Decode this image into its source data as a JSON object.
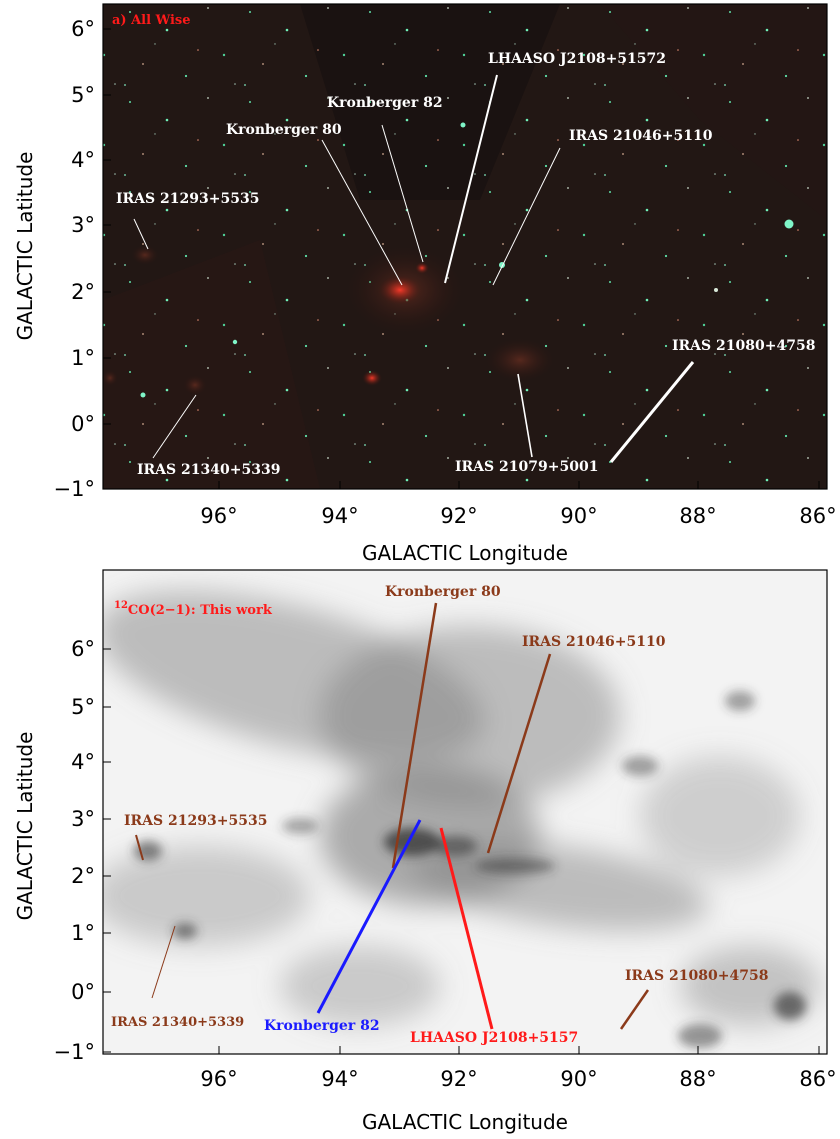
{
  "figure_top": {
    "panel_label": "a) All Wise",
    "x_ticks": [
      "96°",
      "94°",
      "92°",
      "90°",
      "88°",
      "86°"
    ],
    "y_ticks": [
      "6°",
      "5°",
      "4°",
      "3°",
      "2°",
      "1°",
      "0°",
      "−1°"
    ],
    "xlabel": "GALACTIC Longitude",
    "ylabel": "GALACTIC Latitude",
    "annotations": [
      "LHAASO  J2108+51572",
      "Kronberger 82",
      "Kronberger 80",
      "IRAS 21046+5110",
      "IRAS 21293+5535",
      "IRAS 21080+4758",
      "IRAS 21340+5339",
      "IRAS 21079+5001"
    ]
  },
  "figure_bottom": {
    "panel_label_sup": "12",
    "panel_label": "CO(2−1): This work",
    "x_ticks": [
      "96°",
      "94°",
      "92°",
      "90°",
      "88°",
      "86°"
    ],
    "y_ticks": [
      "6°",
      "5°",
      "4°",
      "3°",
      "2°",
      "1°",
      "0°",
      "−1°"
    ],
    "xlabel": "GALACTIC Longitude",
    "ylabel": "GALACTIC Latitude",
    "annotations": [
      "Kronberger 80",
      "IRAS 21046+5110",
      "IRAS 21293+5535",
      "IRAS 21340+5339",
      "Kronberger 82",
      "LHAASO J2108+5157",
      "IRAS 21080+4758"
    ],
    "annotation_colors": {
      "brown": "#8b3a1a",
      "blue": "#1a1aff",
      "red": "#ff1a1a"
    }
  }
}
